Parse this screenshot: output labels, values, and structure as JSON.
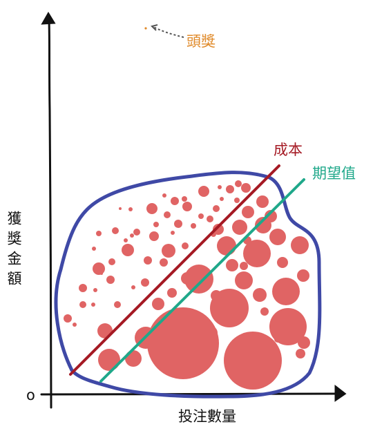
{
  "diagram": {
    "jackpot_label": "頭獎",
    "cost_label": "成本",
    "expected_value_label": "期望值",
    "y_axis_label": "獲獎金額",
    "x_axis_label": "投注數量",
    "origin_label": "o"
  },
  "colors": {
    "axis": "#111111",
    "blob_outline": "#3f49a6",
    "bubbles": "#e06464",
    "cost_line": "#a51a24",
    "expected_value_line": "#1fa88a",
    "jackpot": "#e08a2a",
    "jackpot_arrow": "#555555"
  }
}
